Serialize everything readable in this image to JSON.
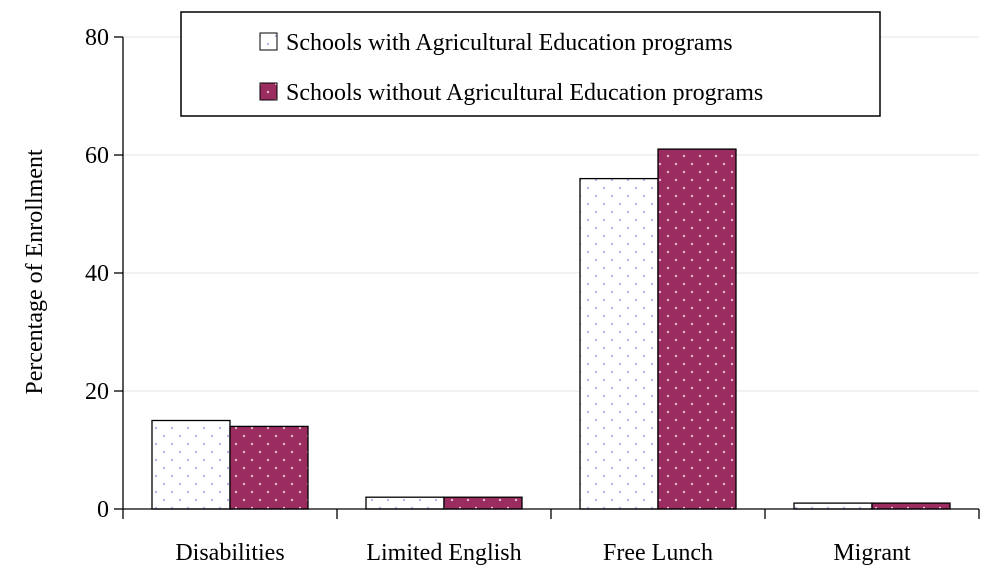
{
  "chart_data": {
    "type": "bar",
    "categories": [
      "Disabilities",
      "Limited English",
      "Free Lunch",
      "Migrant"
    ],
    "series": [
      {
        "name": "Schools with Agricultural Education programs",
        "values": [
          15,
          2,
          56,
          1
        ],
        "color": "#ffffff",
        "dot_color": "#b8b8e8"
      },
      {
        "name": "Schools without Agricultural Education programs",
        "values": [
          14,
          2,
          61,
          1
        ],
        "color": "#9b2c60",
        "dot_color": "#e6b8cc"
      }
    ],
    "ylabel": "Percentage of Enrollment",
    "xlabel": "",
    "ylim": [
      0,
      80
    ],
    "yticks": [
      0,
      20,
      40,
      60,
      80
    ],
    "grid": true,
    "legend_position": "top-center"
  }
}
